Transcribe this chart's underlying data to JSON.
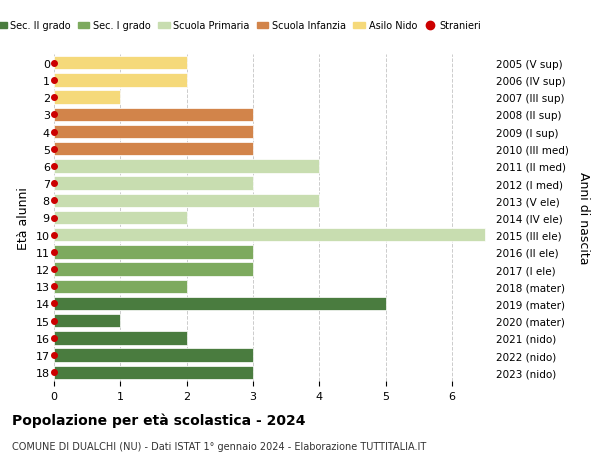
{
  "ages": [
    18,
    17,
    16,
    15,
    14,
    13,
    12,
    11,
    10,
    9,
    8,
    7,
    6,
    5,
    4,
    3,
    2,
    1,
    0
  ],
  "years_labels": [
    "2005 (V sup)",
    "2006 (IV sup)",
    "2007 (III sup)",
    "2008 (II sup)",
    "2009 (I sup)",
    "2010 (III med)",
    "2011 (II med)",
    "2012 (I med)",
    "2013 (V ele)",
    "2014 (IV ele)",
    "2015 (III ele)",
    "2016 (II ele)",
    "2017 (I ele)",
    "2018 (mater)",
    "2019 (mater)",
    "2020 (mater)",
    "2021 (nido)",
    "2022 (nido)",
    "2023 (nido)"
  ],
  "values": [
    3,
    3,
    2,
    1,
    5,
    2,
    3,
    3,
    6.5,
    2,
    4,
    3,
    4,
    3,
    3,
    3,
    1,
    2,
    2
  ],
  "bar_colors": [
    "#4a7c3f",
    "#4a7c3f",
    "#4a7c3f",
    "#4a7c3f",
    "#4a7c3f",
    "#7daa5e",
    "#7daa5e",
    "#7daa5e",
    "#c8ddb0",
    "#c8ddb0",
    "#c8ddb0",
    "#c8ddb0",
    "#c8ddb0",
    "#d2844a",
    "#d2844a",
    "#d2844a",
    "#f5d97a",
    "#f5d97a",
    "#f5d97a"
  ],
  "stranieri_color": "#cc0000",
  "legend_labels": [
    "Sec. II grado",
    "Sec. I grado",
    "Scuola Primaria",
    "Scuola Infanzia",
    "Asilo Nido",
    "Stranieri"
  ],
  "legend_colors": [
    "#4a7c3f",
    "#7daa5e",
    "#c8ddb0",
    "#d2844a",
    "#f5d97a",
    "#cc0000"
  ],
  "ylabel_left": "Età alunni",
  "ylabel_right": "Anni di nascita",
  "title": "Popolazione per età scolastica - 2024",
  "subtitle": "COMUNE DI DUALCHI (NU) - Dati ISTAT 1° gennaio 2024 - Elaborazione TUTTITALIA.IT",
  "xlim": [
    0,
    6.6
  ],
  "xticks": [
    0,
    1,
    2,
    3,
    4,
    5,
    6
  ],
  "background_color": "#ffffff",
  "grid_color": "#cccccc",
  "bar_height": 0.78
}
